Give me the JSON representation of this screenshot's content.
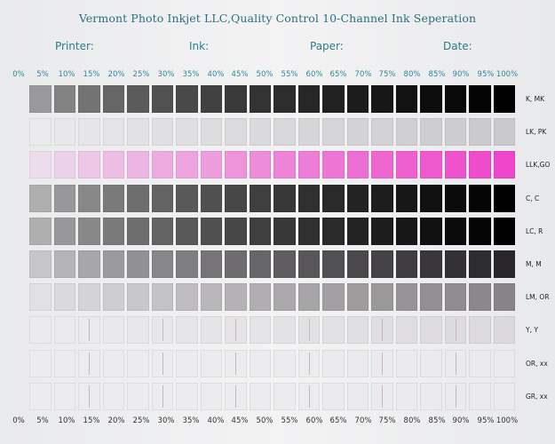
{
  "header": {
    "title": "Vermont Photo Inkjet LLC,Quality Control 10-Channel Ink Seperation",
    "printer_label": "Printer:",
    "ink_label": "Ink:",
    "paper_label": "Paper:",
    "date_label": "Date:"
  },
  "percentages": [
    "0%",
    "5%",
    "10%",
    "15%",
    "20%",
    "25%",
    "30%",
    "35%",
    "40%",
    "45%",
    "50%",
    "55%",
    "60%",
    "65%",
    "70%",
    "75%",
    "80%",
    "85%",
    "90%",
    "95%",
    "100%"
  ],
  "channels": [
    {
      "label": "K, MK",
      "rgb": [
        0,
        0,
        0
      ],
      "strength": 1.0,
      "gamma": 0.35
    },
    {
      "label": "LK, PK",
      "rgb": [
        160,
        158,
        160
      ],
      "strength": 0.45,
      "gamma": 0.9
    },
    {
      "label": "LLK,GO",
      "rgb": [
        238,
        60,
        200
      ],
      "strength": 0.95,
      "gamma": 0.8
    },
    {
      "label": "C, C",
      "rgb": [
        0,
        0,
        0
      ],
      "strength": 1.0,
      "gamma": 0.45
    },
    {
      "label": "LC, R",
      "rgb": [
        0,
        0,
        0
      ],
      "strength": 1.0,
      "gamma": 0.45
    },
    {
      "label": "M, M",
      "rgb": [
        40,
        38,
        40
      ],
      "strength": 1.0,
      "gamma": 0.55
    },
    {
      "label": "LM, OR",
      "rgb": [
        110,
        105,
        108
      ],
      "strength": 0.8,
      "gamma": 0.75
    },
    {
      "label": "Y, Y",
      "rgb": [
        170,
        160,
        165
      ],
      "strength": 0.25,
      "gamma": 1.0
    },
    {
      "label": "OR, xx",
      "rgb": [
        220,
        220,
        222
      ],
      "strength": 0.05,
      "gamma": 1.0
    },
    {
      "label": "GR, xx",
      "rgb": [
        220,
        220,
        222
      ],
      "strength": 0.05,
      "gamma": 1.0
    }
  ],
  "colors": {
    "title": "#2b6f80",
    "header_text": "#2b7d8b",
    "paper": "#eeeff0"
  }
}
